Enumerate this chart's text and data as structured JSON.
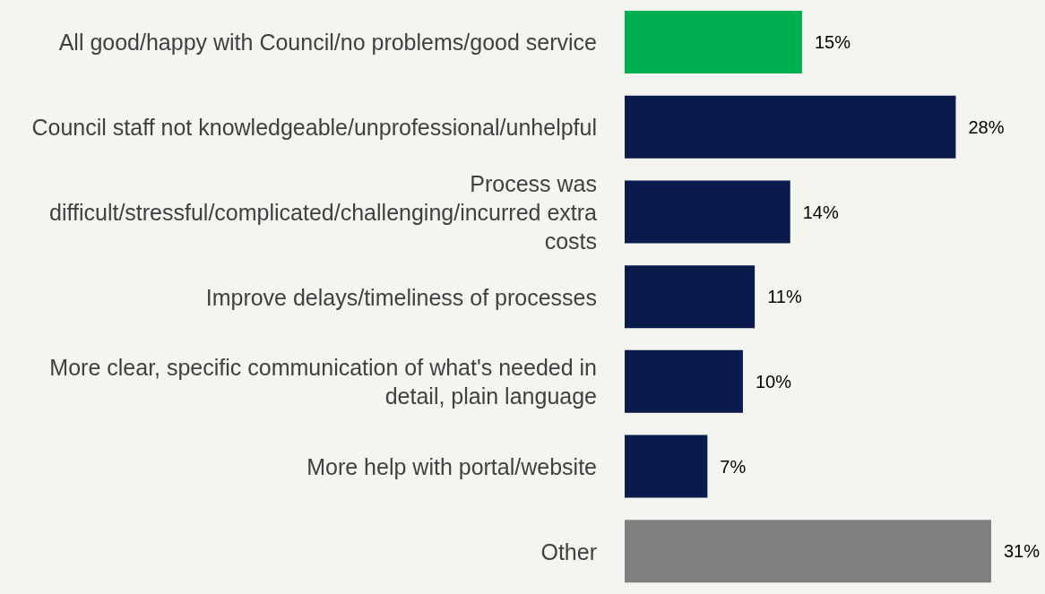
{
  "chart_data": {
    "type": "bar",
    "orientation": "horizontal",
    "categories": [
      "All good/happy with Council/no problems/good service",
      "Council staff not knowledgeable/unprofessional/unhelpful",
      "Process was difficult/stressful/complicated/challenging/incurred extra costs",
      "Improve delays/timeliness of processes",
      "More clear, specific communication of what's needed in detail, plain language",
      "More help with portal/website",
      "Other"
    ],
    "values": [
      15,
      28,
      14,
      11,
      10,
      7,
      31
    ],
    "colors": [
      "#00b050",
      "#0a1a4a",
      "#0a1a4a",
      "#0a1a4a",
      "#0a1a4a",
      "#0a1a4a",
      "#808080"
    ],
    "value_labels": [
      "15%",
      "28%",
      "14%",
      "11%",
      "10%",
      "7%",
      "31%"
    ]
  }
}
